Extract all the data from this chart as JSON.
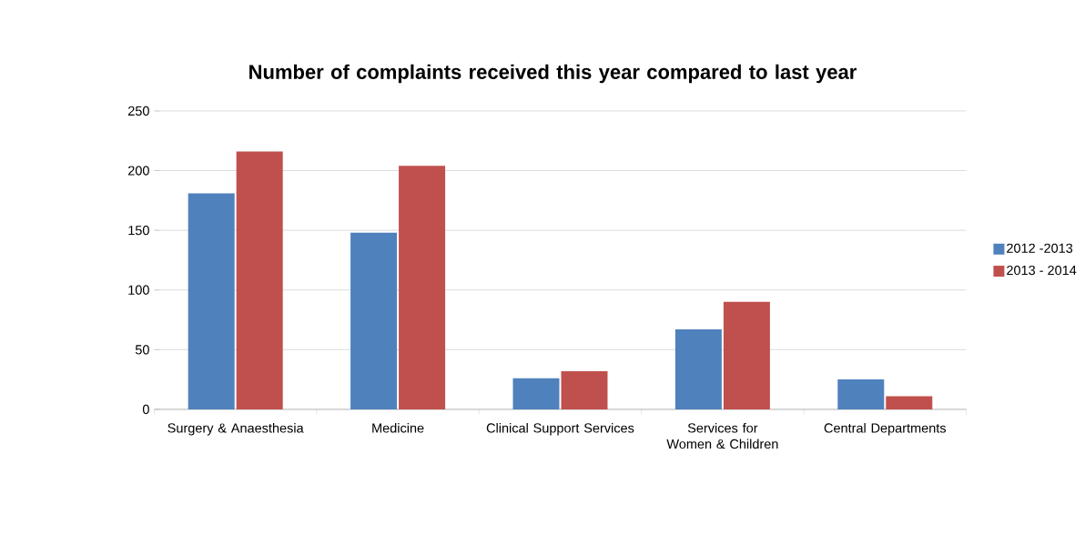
{
  "chart_data": {
    "type": "bar",
    "title": "Number of complaints received this year compared to last year",
    "categories": [
      "Surgery & Anaesthesia",
      "Medicine",
      "Clinical Support Services",
      "Services for Women & Children",
      "Central Departments"
    ],
    "series": [
      {
        "name": "2012 -2013",
        "color": "#4f81bd",
        "values": [
          181,
          148,
          26,
          67,
          25
        ]
      },
      {
        "name": "2013 - 2014",
        "color": "#c0504d",
        "values": [
          216,
          204,
          32,
          90,
          11
        ]
      }
    ],
    "ylim": [
      0,
      250
    ],
    "yticks": [
      0,
      50,
      100,
      150,
      200,
      250
    ],
    "grid": "y",
    "legend": "right"
  }
}
